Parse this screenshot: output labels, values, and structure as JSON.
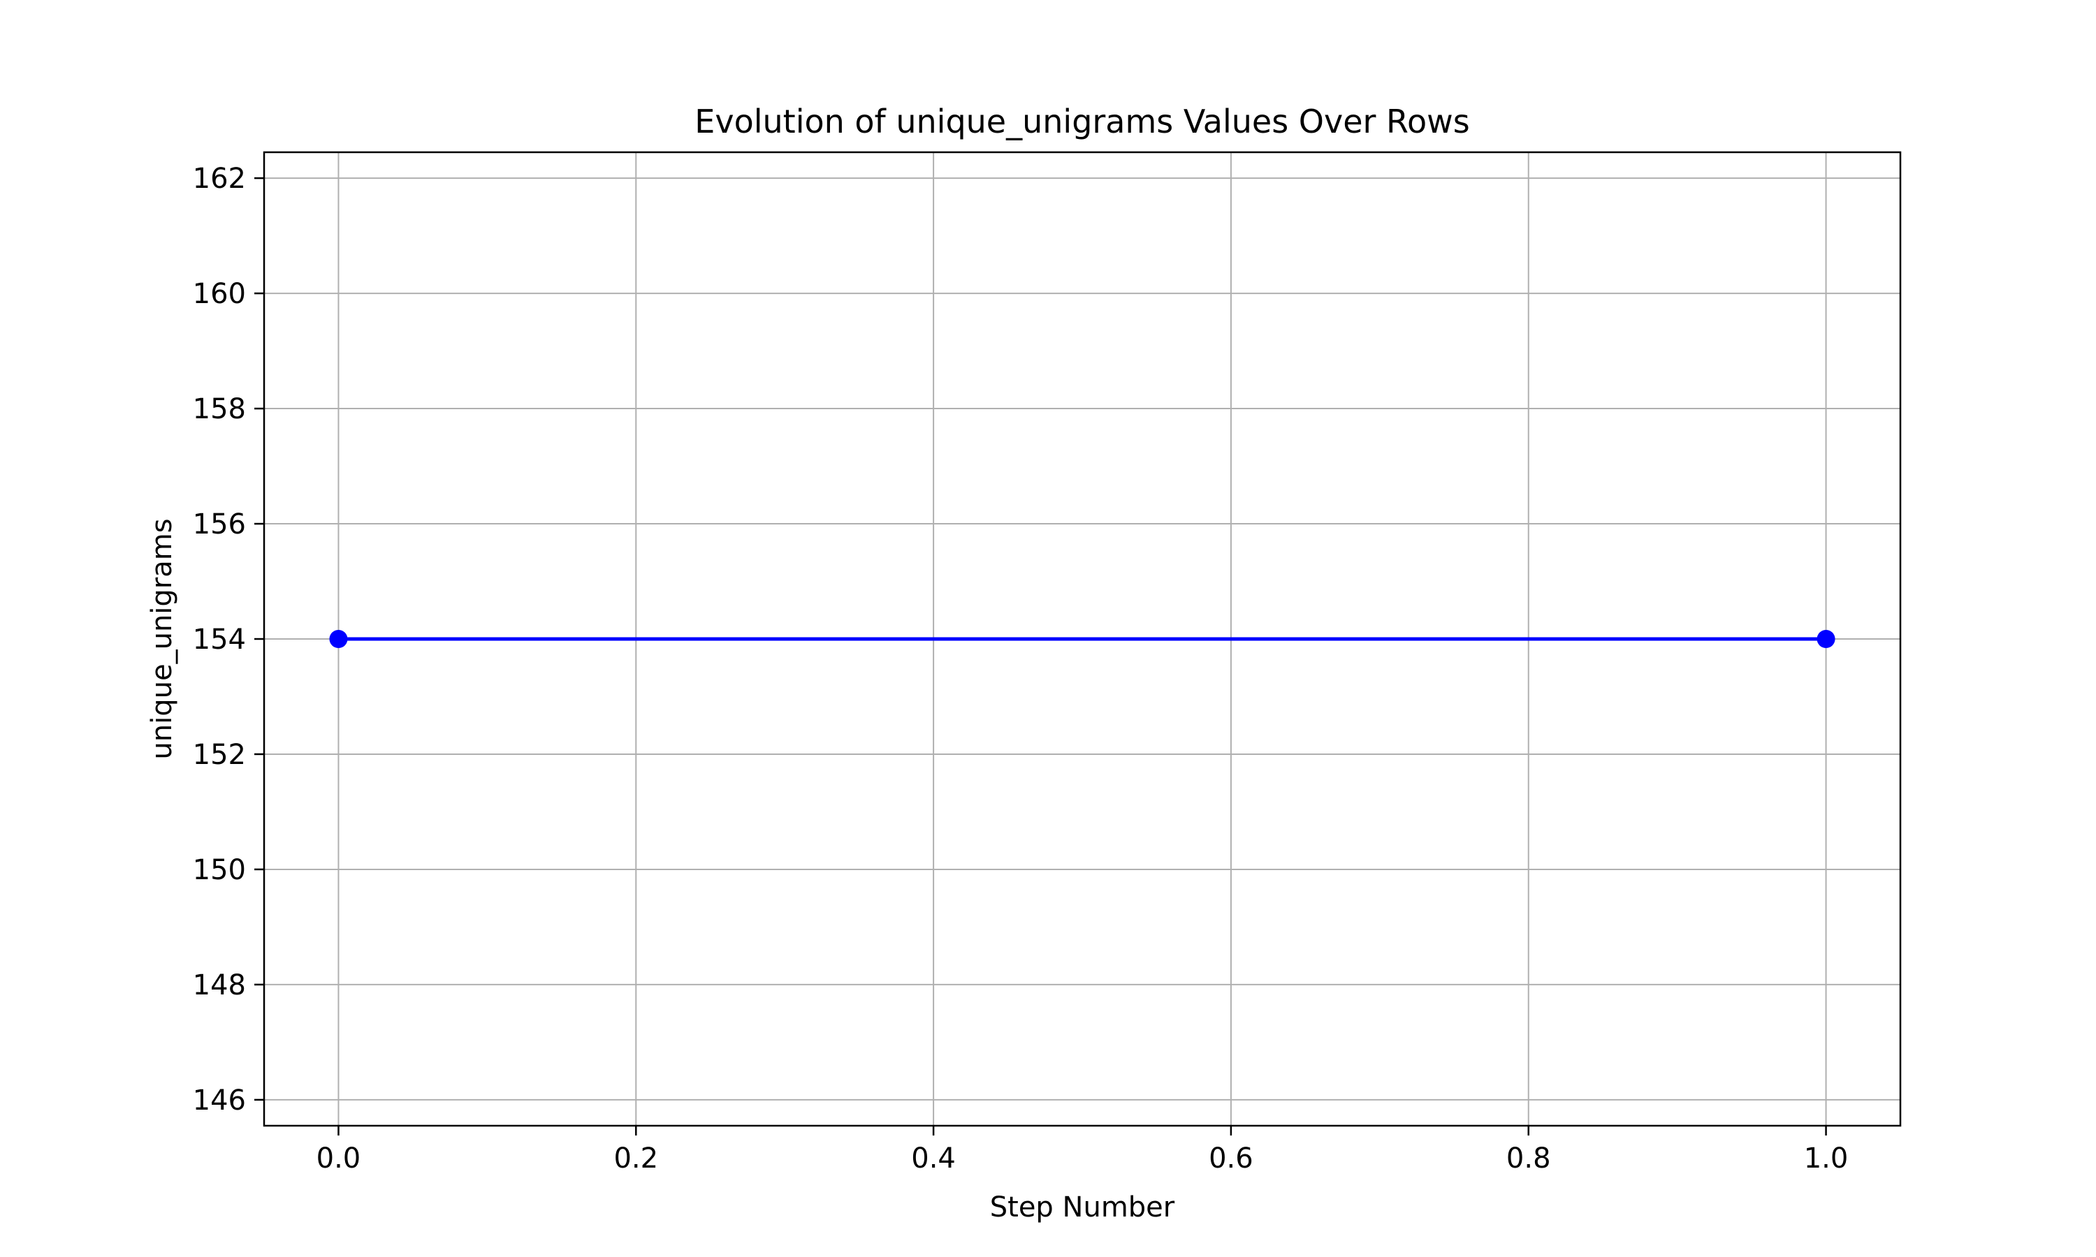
{
  "chart_data": {
    "type": "line",
    "title": "Evolution of unique_unigrams Values Over Rows",
    "xlabel": "Step Number",
    "ylabel": "unique_unigrams",
    "x": [
      0.0,
      1.0
    ],
    "series": [
      {
        "values": [
          154,
          154
        ],
        "color": "#0000ff",
        "marker": "circle"
      }
    ],
    "xlim": [
      -0.05,
      1.05
    ],
    "ylim": [
      145.55,
      162.45
    ],
    "xticks": [
      0.0,
      0.2,
      0.4,
      0.6,
      0.8,
      1.0
    ],
    "xtick_labels": [
      "0.0",
      "0.2",
      "0.4",
      "0.6",
      "0.8",
      "1.0"
    ],
    "yticks": [
      146,
      148,
      150,
      152,
      154,
      156,
      158,
      160,
      162
    ],
    "ytick_labels": [
      "146",
      "148",
      "150",
      "152",
      "154",
      "156",
      "158",
      "160",
      "162"
    ],
    "grid": true,
    "grid_color": "#b0b0b0",
    "axes_color": "#000000"
  }
}
